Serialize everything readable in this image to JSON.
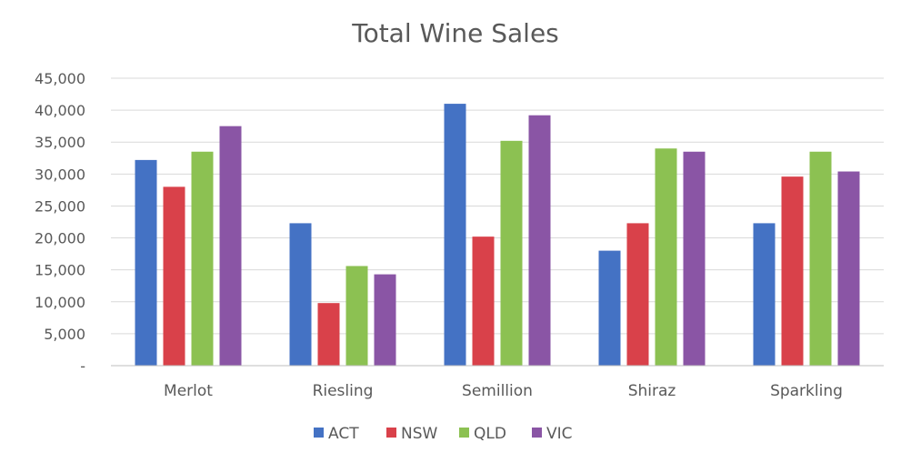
{
  "chart_data": {
    "type": "bar",
    "title": "Total Wine Sales",
    "categories": [
      "Merlot",
      "Riesling",
      "Semillion",
      "Shiraz",
      "Sparkling"
    ],
    "series": [
      {
        "name": "ACT",
        "color": "#4472c4",
        "values": [
          32200,
          22300,
          41000,
          18000,
          22300
        ]
      },
      {
        "name": "NSW",
        "color": "#d9414a",
        "values": [
          28000,
          9800,
          20200,
          22300,
          29600
        ]
      },
      {
        "name": "QLD",
        "color": "#8cc152",
        "values": [
          33500,
          15600,
          35200,
          34000,
          33500
        ]
      },
      {
        "name": "VIC",
        "color": "#8a55a5",
        "values": [
          37500,
          14300,
          39200,
          33500,
          30400
        ]
      }
    ],
    "ylim": [
      0,
      45000
    ],
    "yticks": [
      0,
      5000,
      10000,
      15000,
      20000,
      25000,
      30000,
      35000,
      40000,
      45000
    ],
    "ytick_labels": [
      "-",
      "5,000",
      "10,000",
      "15,000",
      "20,000",
      "25,000",
      "30,000",
      "35,000",
      "40,000",
      "45,000"
    ],
    "grid": true,
    "legend_position": "bottom"
  }
}
